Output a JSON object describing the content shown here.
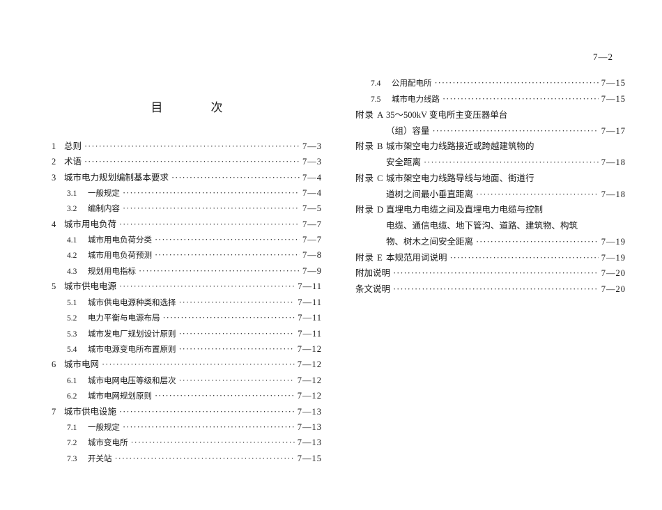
{
  "page_number": "7—2",
  "heading": "目　次",
  "left": [
    {
      "type": "l1",
      "num": "1",
      "text": "总则",
      "page": "7—3"
    },
    {
      "type": "l1",
      "num": "2",
      "text": "术语",
      "page": "7—3"
    },
    {
      "type": "l1",
      "num": "3",
      "text": "城市电力规划编制基本要求",
      "page": "7—4"
    },
    {
      "type": "l2",
      "num": "3.1",
      "text": "一般规定",
      "page": "7—4"
    },
    {
      "type": "l2",
      "num": "3.2",
      "text": "编制内容",
      "page": "7—5"
    },
    {
      "type": "l1",
      "num": "4",
      "text": "城市用电负荷",
      "page": "7—7"
    },
    {
      "type": "l2",
      "num": "4.1",
      "text": "城市用电负荷分类",
      "page": "7—7"
    },
    {
      "type": "l2",
      "num": "4.2",
      "text": "城市用电负荷预测",
      "page": "7—8"
    },
    {
      "type": "l2",
      "num": "4.3",
      "text": "规划用电指标",
      "page": "7—9"
    },
    {
      "type": "l1",
      "num": "5",
      "text": "城市供电电源",
      "page": "7—11"
    },
    {
      "type": "l2",
      "num": "5.1",
      "text": "城市供电电源种类和选择",
      "page": "7—11"
    },
    {
      "type": "l2",
      "num": "5.2",
      "text": "电力平衡与电源布局",
      "page": "7—11"
    },
    {
      "type": "l2",
      "num": "5.3",
      "text": "城市发电厂规划设计原则",
      "page": "7—11"
    },
    {
      "type": "l2",
      "num": "5.4",
      "text": "城市电源变电所布置原则",
      "page": "7—12"
    },
    {
      "type": "l1",
      "num": "6",
      "text": "城市电网",
      "page": "7—12"
    },
    {
      "type": "l2",
      "num": "6.1",
      "text": "城市电网电压等级和层次",
      "page": "7—12"
    },
    {
      "type": "l2",
      "num": "6.2",
      "text": "城市电网规划原则",
      "page": "7—12"
    },
    {
      "type": "l1",
      "num": "7",
      "text": "城市供电设施",
      "page": "7—13"
    },
    {
      "type": "l2",
      "num": "7.1",
      "text": "一般规定",
      "page": "7—13"
    },
    {
      "type": "l2",
      "num": "7.2",
      "text": "城市变电所",
      "page": "7—13"
    },
    {
      "type": "l2",
      "num": "7.3",
      "text": "开关站",
      "page": "7—15"
    }
  ],
  "right": [
    {
      "type": "l2",
      "num": "7.4",
      "text": "公用配电所",
      "page": "7—15"
    },
    {
      "type": "l2",
      "num": "7.5",
      "text": "城市电力线路",
      "page": "7—15"
    },
    {
      "type": "apx",
      "num": "附录 A",
      "text": "35～500kV 变电所主变压器单台"
    },
    {
      "type": "apx-cont",
      "text": "（组）容量",
      "page": "7—17"
    },
    {
      "type": "apx",
      "num": "附录 B",
      "text": "城市架空电力线路接近或跨越建筑物的"
    },
    {
      "type": "apx-cont",
      "text": "安全距离",
      "page": "7—18"
    },
    {
      "type": "apx",
      "num": "附录 C",
      "text": "城市架空电力线路导线与地面、街道行"
    },
    {
      "type": "apx-cont",
      "text": "道树之间最小垂直距离",
      "page": "7—18"
    },
    {
      "type": "apx",
      "num": "附录 D",
      "text": "直埋电力电缆之间及直埋电力电缆与控制"
    },
    {
      "type": "apx-cont2",
      "text": "电缆、通信电缆、地下管沟、道路、建筑物、构筑"
    },
    {
      "type": "apx-cont",
      "text": "物、树木之间安全距离",
      "page": "7—19"
    },
    {
      "type": "apx",
      "num": "附录 E",
      "text": "本规范用词说明",
      "page": "7—19"
    },
    {
      "type": "plain",
      "text": "附加说明",
      "page": "7—20"
    },
    {
      "type": "plain",
      "text": "条文说明",
      "page": "7—20"
    }
  ]
}
